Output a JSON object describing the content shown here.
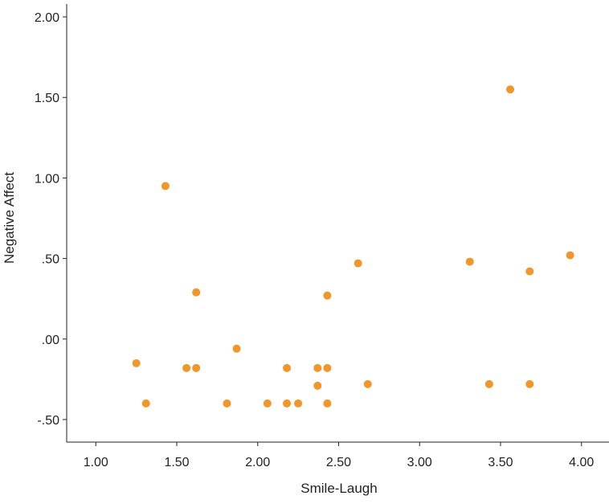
{
  "chart_data": {
    "type": "scatter",
    "title": "",
    "xlabel": "Smile-Laugh",
    "ylabel": "Negative Affect",
    "xlim": [
      0.82,
      4.17
    ],
    "ylim": [
      -0.64,
      2.08
    ],
    "x_ticks": [
      1.0,
      1.5,
      2.0,
      2.5,
      3.0,
      3.5,
      4.0
    ],
    "x_tick_labels": [
      "1.00",
      "1.50",
      "2.00",
      "2.50",
      "3.00",
      "3.50",
      "4.00"
    ],
    "y_ticks": [
      -0.5,
      0.0,
      0.5,
      1.0,
      1.5,
      2.0
    ],
    "y_tick_labels": [
      "-.50",
      ".00",
      ".50",
      "1.00",
      "1.50",
      "2.00"
    ],
    "grid": false,
    "marker_color": "#f0962a",
    "points": [
      {
        "x": 1.25,
        "y": -0.15
      },
      {
        "x": 1.31,
        "y": -0.4
      },
      {
        "x": 1.43,
        "y": 0.95
      },
      {
        "x": 1.56,
        "y": -0.18
      },
      {
        "x": 1.62,
        "y": 0.29
      },
      {
        "x": 1.62,
        "y": -0.18
      },
      {
        "x": 1.81,
        "y": -0.4
      },
      {
        "x": 1.87,
        "y": -0.06
      },
      {
        "x": 2.06,
        "y": -0.4
      },
      {
        "x": 2.18,
        "y": -0.18
      },
      {
        "x": 2.18,
        "y": -0.4
      },
      {
        "x": 2.25,
        "y": -0.4
      },
      {
        "x": 2.37,
        "y": -0.18
      },
      {
        "x": 2.37,
        "y": -0.29
      },
      {
        "x": 2.43,
        "y": 0.27
      },
      {
        "x": 2.43,
        "y": -0.18
      },
      {
        "x": 2.43,
        "y": -0.4
      },
      {
        "x": 2.62,
        "y": 0.47
      },
      {
        "x": 2.68,
        "y": -0.28
      },
      {
        "x": 3.31,
        "y": 0.48
      },
      {
        "x": 3.43,
        "y": -0.28
      },
      {
        "x": 3.56,
        "y": 1.55
      },
      {
        "x": 3.68,
        "y": 0.42
      },
      {
        "x": 3.68,
        "y": -0.28
      },
      {
        "x": 3.93,
        "y": 0.52
      }
    ]
  }
}
